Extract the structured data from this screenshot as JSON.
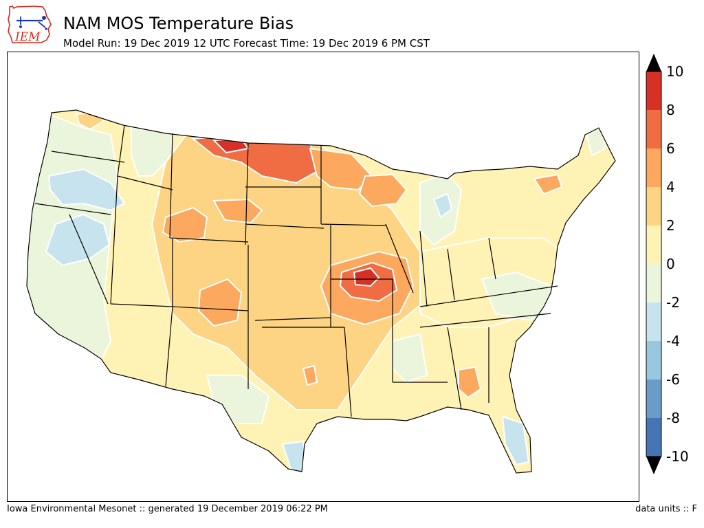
{
  "header": {
    "logo_text": "IEM",
    "title": "NAM MOS Temperature Bias",
    "subtitle": "Model Run: 19 Dec 2019 12 UTC Forecast Time: 19 Dec 2019 6 PM CST"
  },
  "colorbar": {
    "levels": [
      -10,
      -8,
      -6,
      -4,
      -2,
      0,
      2,
      4,
      6,
      8,
      10
    ],
    "labels": [
      "10",
      "8",
      "6",
      "4",
      "2",
      "0",
      "-2",
      "-4",
      "-6",
      "-8",
      "-10"
    ],
    "colors": [
      "#4575b4",
      "#6b9bc9",
      "#9ac7e0",
      "#c7e4ee",
      "#eaf5db",
      "#fff2b5",
      "#fdd384",
      "#fca85e",
      "#f06c43",
      "#d73027"
    ],
    "under_color": "#000000",
    "over_color": "#000000"
  },
  "footer": {
    "left": "Iowa Environmental Mesonet :: generated 19 December 2019 06:22 PM",
    "right": "data units :: F"
  }
}
